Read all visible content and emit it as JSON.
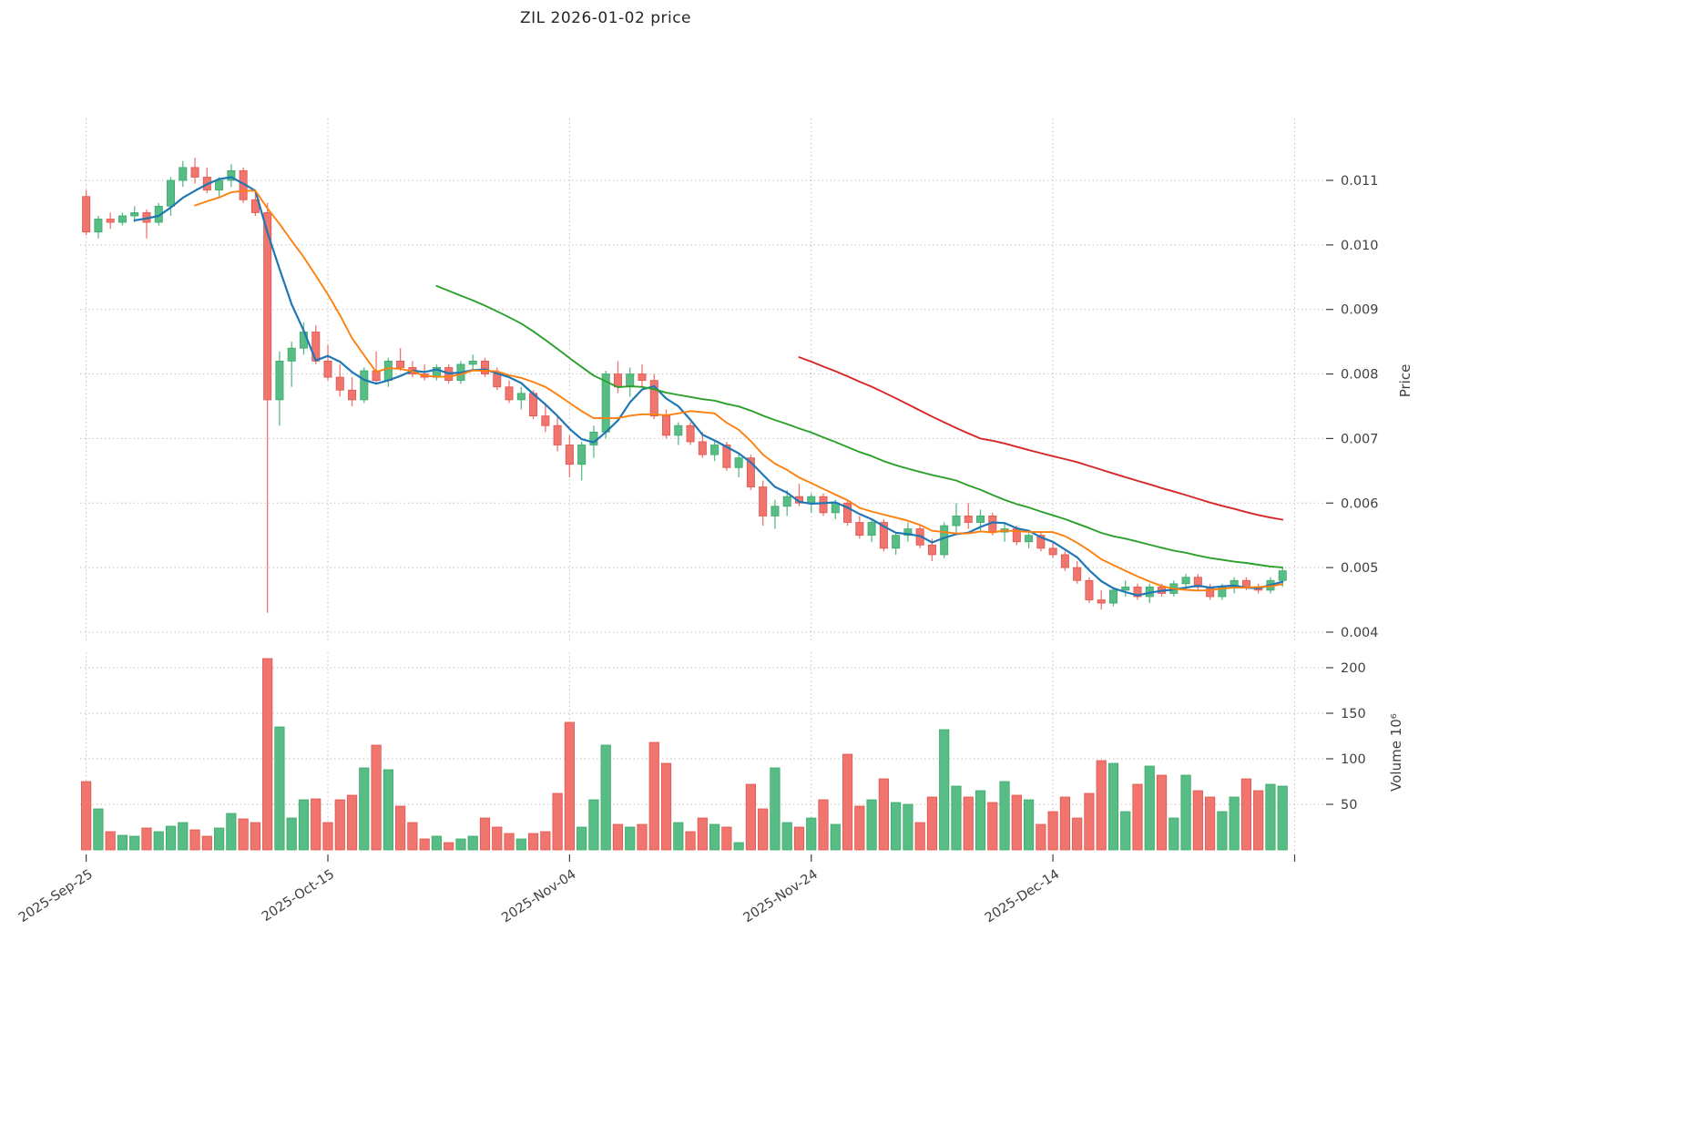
{
  "title": "ZIL  2026-01-02  price",
  "chart_data": {
    "type": "candlestick",
    "symbol": "ZIL",
    "as_of_date": "2026-01-02",
    "title": "ZIL  2026-01-02  price",
    "grid": true,
    "columns": [
      "date",
      "open",
      "high",
      "low",
      "close",
      "volume_millions"
    ],
    "ohlcv": [
      [
        "2025-09-25",
        0.01075,
        0.01085,
        0.01015,
        0.0102,
        75
      ],
      [
        "2025-09-26",
        0.0102,
        0.01045,
        0.0101,
        0.0104,
        45
      ],
      [
        "2025-09-27",
        0.0104,
        0.0105,
        0.01025,
        0.01035,
        20
      ],
      [
        "2025-09-28",
        0.01035,
        0.0105,
        0.0103,
        0.01045,
        16
      ],
      [
        "2025-09-29",
        0.01045,
        0.0106,
        0.01035,
        0.0105,
        15
      ],
      [
        "2025-09-30",
        0.0105,
        0.01055,
        0.0101,
        0.01035,
        24
      ],
      [
        "2025-10-01",
        0.01035,
        0.01065,
        0.0103,
        0.0106,
        20
      ],
      [
        "2025-10-02",
        0.0106,
        0.01105,
        0.01045,
        0.011,
        26
      ],
      [
        "2025-10-03",
        0.011,
        0.0113,
        0.0109,
        0.0112,
        30
      ],
      [
        "2025-10-04",
        0.0112,
        0.01135,
        0.01095,
        0.01105,
        22
      ],
      [
        "2025-10-05",
        0.01105,
        0.0112,
        0.0108,
        0.01085,
        15
      ],
      [
        "2025-10-06",
        0.01085,
        0.01105,
        0.01075,
        0.011,
        24
      ],
      [
        "2025-10-07",
        0.011,
        0.01125,
        0.0109,
        0.01115,
        40
      ],
      [
        "2025-10-08",
        0.01115,
        0.0112,
        0.01065,
        0.0107,
        34
      ],
      [
        "2025-10-09",
        0.0107,
        0.01085,
        0.01045,
        0.0105,
        30
      ],
      [
        "2025-10-10",
        0.0105,
        0.01065,
        0.0043,
        0.0076,
        210
      ],
      [
        "2025-10-11",
        0.0076,
        0.00835,
        0.0072,
        0.0082,
        135
      ],
      [
        "2025-10-12",
        0.0082,
        0.0085,
        0.0078,
        0.0084,
        35
      ],
      [
        "2025-10-13",
        0.0084,
        0.0088,
        0.0083,
        0.00865,
        55
      ],
      [
        "2025-10-14",
        0.00865,
        0.00875,
        0.00815,
        0.0082,
        56
      ],
      [
        "2025-10-15",
        0.0082,
        0.00845,
        0.0079,
        0.00795,
        30
      ],
      [
        "2025-10-16",
        0.00795,
        0.00815,
        0.00765,
        0.00775,
        55
      ],
      [
        "2025-10-17",
        0.00775,
        0.00795,
        0.0075,
        0.0076,
        60
      ],
      [
        "2025-10-18",
        0.0076,
        0.0081,
        0.00755,
        0.00805,
        90
      ],
      [
        "2025-10-19",
        0.00805,
        0.00835,
        0.00785,
        0.0079,
        115
      ],
      [
        "2025-10-20",
        0.0079,
        0.00825,
        0.0078,
        0.0082,
        88
      ],
      [
        "2025-10-21",
        0.0082,
        0.0084,
        0.00805,
        0.0081,
        48
      ],
      [
        "2025-10-22",
        0.0081,
        0.0082,
        0.00795,
        0.008,
        30
      ],
      [
        "2025-10-23",
        0.008,
        0.00815,
        0.0079,
        0.00795,
        12
      ],
      [
        "2025-10-24",
        0.00795,
        0.00815,
        0.0079,
        0.0081,
        15
      ],
      [
        "2025-10-25",
        0.0081,
        0.00815,
        0.00785,
        0.0079,
        8
      ],
      [
        "2025-10-26",
        0.0079,
        0.0082,
        0.00785,
        0.00815,
        12
      ],
      [
        "2025-10-27",
        0.00815,
        0.0083,
        0.00805,
        0.0082,
        15
      ],
      [
        "2025-10-28",
        0.0082,
        0.00825,
        0.00795,
        0.008,
        35
      ],
      [
        "2025-10-29",
        0.008,
        0.0081,
        0.00775,
        0.0078,
        25
      ],
      [
        "2025-10-30",
        0.0078,
        0.0079,
        0.00755,
        0.0076,
        18
      ],
      [
        "2025-10-31",
        0.0076,
        0.0078,
        0.00745,
        0.0077,
        12
      ],
      [
        "2025-11-01",
        0.0077,
        0.00775,
        0.0073,
        0.00735,
        18
      ],
      [
        "2025-11-02",
        0.00735,
        0.00755,
        0.0071,
        0.0072,
        20
      ],
      [
        "2025-11-03",
        0.0072,
        0.00735,
        0.0068,
        0.0069,
        62
      ],
      [
        "2025-11-04",
        0.0069,
        0.00705,
        0.0064,
        0.0066,
        140
      ],
      [
        "2025-11-05",
        0.0066,
        0.00695,
        0.00635,
        0.0069,
        25
      ],
      [
        "2025-11-06",
        0.0069,
        0.0072,
        0.0067,
        0.0071,
        55
      ],
      [
        "2025-11-07",
        0.0071,
        0.00805,
        0.007,
        0.008,
        115
      ],
      [
        "2025-11-08",
        0.008,
        0.0082,
        0.0077,
        0.0078,
        28
      ],
      [
        "2025-11-09",
        0.0078,
        0.0081,
        0.00765,
        0.008,
        25
      ],
      [
        "2025-11-10",
        0.008,
        0.00815,
        0.0078,
        0.0079,
        28
      ],
      [
        "2025-11-11",
        0.0079,
        0.008,
        0.0073,
        0.00735,
        118
      ],
      [
        "2025-11-12",
        0.00735,
        0.00745,
        0.007,
        0.00705,
        95
      ],
      [
        "2025-11-13",
        0.00705,
        0.00725,
        0.0069,
        0.0072,
        30
      ],
      [
        "2025-11-14",
        0.0072,
        0.00725,
        0.0069,
        0.00695,
        20
      ],
      [
        "2025-11-15",
        0.00695,
        0.0071,
        0.0067,
        0.00675,
        35
      ],
      [
        "2025-11-16",
        0.00675,
        0.00695,
        0.00665,
        0.0069,
        28
      ],
      [
        "2025-11-17",
        0.0069,
        0.00695,
        0.0065,
        0.00655,
        25
      ],
      [
        "2025-11-18",
        0.00655,
        0.00675,
        0.0064,
        0.0067,
        8
      ],
      [
        "2025-11-19",
        0.0067,
        0.00675,
        0.0062,
        0.00625,
        72
      ],
      [
        "2025-11-20",
        0.00625,
        0.00635,
        0.00565,
        0.0058,
        45
      ],
      [
        "2025-11-21",
        0.0058,
        0.00605,
        0.0056,
        0.00595,
        90
      ],
      [
        "2025-11-22",
        0.00595,
        0.0062,
        0.0058,
        0.0061,
        30
      ],
      [
        "2025-11-23",
        0.0061,
        0.0063,
        0.00595,
        0.006,
        25
      ],
      [
        "2025-11-24",
        0.006,
        0.00615,
        0.00585,
        0.0061,
        35
      ],
      [
        "2025-11-25",
        0.0061,
        0.00615,
        0.0058,
        0.00585,
        55
      ],
      [
        "2025-11-26",
        0.00585,
        0.00605,
        0.00575,
        0.006,
        28
      ],
      [
        "2025-11-27",
        0.006,
        0.00605,
        0.00565,
        0.0057,
        105
      ],
      [
        "2025-11-28",
        0.0057,
        0.0058,
        0.00545,
        0.0055,
        48
      ],
      [
        "2025-11-29",
        0.0055,
        0.00575,
        0.0054,
        0.0057,
        55
      ],
      [
        "2025-11-30",
        0.0057,
        0.00575,
        0.00525,
        0.0053,
        78
      ],
      [
        "2025-12-01",
        0.0053,
        0.00555,
        0.0052,
        0.0055,
        52
      ],
      [
        "2025-12-02",
        0.0055,
        0.0057,
        0.0054,
        0.0056,
        50
      ],
      [
        "2025-12-03",
        0.0056,
        0.00565,
        0.0053,
        0.00535,
        30
      ],
      [
        "2025-12-04",
        0.00535,
        0.00545,
        0.0051,
        0.0052,
        58
      ],
      [
        "2025-12-05",
        0.0052,
        0.0057,
        0.00515,
        0.00565,
        132
      ],
      [
        "2025-12-06",
        0.00565,
        0.006,
        0.0055,
        0.0058,
        70
      ],
      [
        "2025-12-07",
        0.0058,
        0.006,
        0.0056,
        0.0057,
        58
      ],
      [
        "2025-12-08",
        0.0057,
        0.0059,
        0.00555,
        0.0058,
        65
      ],
      [
        "2025-12-09",
        0.0058,
        0.00585,
        0.0055,
        0.00555,
        52
      ],
      [
        "2025-12-10",
        0.00555,
        0.0057,
        0.0054,
        0.0056,
        75
      ],
      [
        "2025-12-11",
        0.0056,
        0.00565,
        0.00535,
        0.0054,
        60
      ],
      [
        "2025-12-12",
        0.0054,
        0.00555,
        0.0053,
        0.0055,
        55
      ],
      [
        "2025-12-13",
        0.0055,
        0.00555,
        0.00525,
        0.0053,
        28
      ],
      [
        "2025-12-14",
        0.0053,
        0.0054,
        0.00515,
        0.0052,
        42
      ],
      [
        "2025-12-15",
        0.0052,
        0.00525,
        0.00495,
        0.005,
        58
      ],
      [
        "2025-12-16",
        0.005,
        0.0051,
        0.00475,
        0.0048,
        35
      ],
      [
        "2025-12-17",
        0.0048,
        0.00485,
        0.00445,
        0.0045,
        62
      ],
      [
        "2025-12-18",
        0.0045,
        0.00465,
        0.00435,
        0.00445,
        98
      ],
      [
        "2025-12-19",
        0.00445,
        0.0047,
        0.0044,
        0.00465,
        95
      ],
      [
        "2025-12-20",
        0.00465,
        0.0048,
        0.00455,
        0.0047,
        42
      ],
      [
        "2025-12-21",
        0.0047,
        0.00475,
        0.0045,
        0.00455,
        72
      ],
      [
        "2025-12-22",
        0.00455,
        0.00475,
        0.00445,
        0.0047,
        92
      ],
      [
        "2025-12-23",
        0.0047,
        0.00475,
        0.00455,
        0.0046,
        82
      ],
      [
        "2025-12-24",
        0.0046,
        0.0048,
        0.00455,
        0.00475,
        35
      ],
      [
        "2025-12-25",
        0.00475,
        0.0049,
        0.00465,
        0.00485,
        82
      ],
      [
        "2025-12-26",
        0.00485,
        0.0049,
        0.00465,
        0.0047,
        65
      ],
      [
        "2025-12-27",
        0.0047,
        0.00475,
        0.0045,
        0.00455,
        58
      ],
      [
        "2025-12-28",
        0.00455,
        0.00475,
        0.0045,
        0.0047,
        42
      ],
      [
        "2025-12-29",
        0.0047,
        0.00485,
        0.0046,
        0.0048,
        58
      ],
      [
        "2025-12-30",
        0.0048,
        0.00485,
        0.00465,
        0.0047,
        78
      ],
      [
        "2025-12-31",
        0.0047,
        0.00475,
        0.0046,
        0.00465,
        65
      ],
      [
        "2026-01-01",
        0.00465,
        0.00485,
        0.0046,
        0.0048,
        72
      ],
      [
        "2026-01-02",
        0.0048,
        0.005,
        0.0047,
        0.00495,
        70
      ]
    ],
    "moving_averages": [
      {
        "name": "sma-5",
        "window": 5,
        "color": "#1f77b4",
        "width": 2.2
      },
      {
        "name": "sma-10",
        "window": 10,
        "color": "#ff7f0e",
        "width": 1.9
      },
      {
        "name": "sma-30",
        "window": 30,
        "color": "#2ca02c",
        "width": 1.9
      },
      {
        "name": "sma-60",
        "window": 60,
        "color": "#d62728",
        "width": 1.9
      }
    ],
    "price_axis": {
      "label": "Price",
      "side": "right",
      "ticks": [
        0.004,
        0.005,
        0.006,
        0.007,
        0.008,
        0.009,
        0.01,
        0.011
      ],
      "tick_labels": [
        "0.004",
        "0.005",
        "0.006",
        "0.007",
        "0.008",
        "0.009",
        "0.010",
        "0.011"
      ],
      "ylim": [
        0.00383,
        0.01196
      ]
    },
    "volume_axis": {
      "label": "Volume  10⁶",
      "side": "right",
      "ticks": [
        50,
        100,
        150,
        200
      ],
      "tick_labels": [
        "50",
        "100",
        "150",
        "200"
      ],
      "ylim": [
        0,
        217
      ]
    },
    "x_axis": {
      "tick_indices": [
        0,
        20,
        40,
        60,
        80
      ],
      "tick_labels": [
        "2025-Sep-25",
        "2025-Oct-15",
        "2025-Nov-04",
        "2025-Nov-24",
        "2025-Dec-14"
      ],
      "unlabeled_gridline_index": 100,
      "label_rotation_deg": -33
    },
    "colors": {
      "up": "#57bd85",
      "up_edge": "#3da96c",
      "down": "#f0756f",
      "down_edge": "#df564f",
      "grid": "#bcbcbc",
      "tick_text": "#3f3f3f",
      "title_text": "#262626"
    }
  }
}
